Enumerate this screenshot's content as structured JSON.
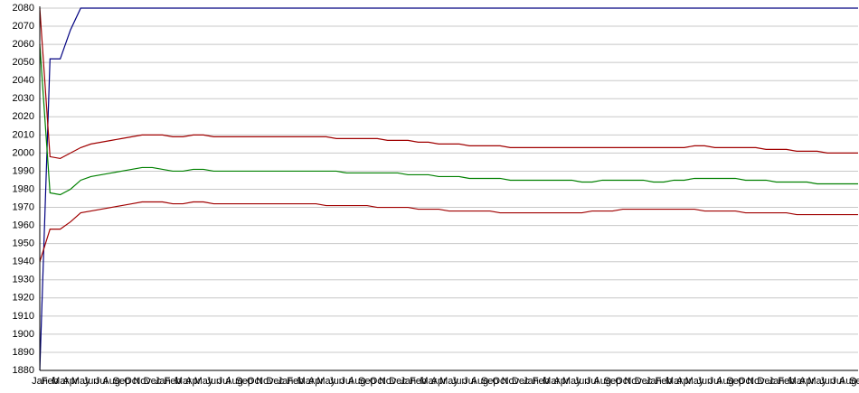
{
  "chart_data": {
    "type": "line",
    "categories": [
      "Jan",
      "Feb",
      "Mar",
      "Apr",
      "May",
      "Jun",
      "Jul",
      "Aug",
      "Sep",
      "Oct",
      "Nov",
      "Dec",
      "Jan",
      "Feb",
      "Mar",
      "Apr",
      "May",
      "Jun",
      "Jul",
      "Aug",
      "Sep",
      "Oct",
      "Nov",
      "Dec",
      "Jan",
      "Feb",
      "Mar",
      "Apr",
      "May",
      "Jun",
      "Jul",
      "Aug",
      "Sep",
      "Oct",
      "Nov",
      "Dec",
      "Jan",
      "Feb",
      "Mar",
      "Apr",
      "May",
      "Jun",
      "Jul",
      "Aug",
      "Sep",
      "Oct",
      "Nov",
      "Dec",
      "Jan",
      "Feb",
      "Mar",
      "Apr",
      "May",
      "Jun",
      "Jul",
      "Aug",
      "Sep",
      "Oct",
      "Nov",
      "Dec",
      "Jan",
      "Feb",
      "Mar",
      "Apr",
      "May",
      "Jun",
      "Jul",
      "Aug",
      "Sep",
      "Oct",
      "Nov",
      "Dec",
      "Jan",
      "Feb",
      "Mar",
      "Apr",
      "May",
      "Jun",
      "Jul",
      "Aug",
      "Sep"
    ],
    "series": [
      {
        "color": "#000080",
        "values": [
          1880,
          2052,
          2052,
          2068,
          2080,
          2080,
          2080,
          2080,
          2080,
          2080,
          2080,
          2080,
          2080,
          2080,
          2080,
          2080,
          2080,
          2080,
          2080,
          2080,
          2080,
          2080,
          2080,
          2080,
          2080,
          2080,
          2080,
          2080,
          2080,
          2080,
          2080,
          2080,
          2080,
          2080,
          2080,
          2080,
          2080,
          2080,
          2080,
          2080,
          2080,
          2080,
          2080,
          2080,
          2080,
          2080,
          2080,
          2080,
          2080,
          2080,
          2080,
          2080,
          2080,
          2080,
          2080,
          2080,
          2080,
          2080,
          2080,
          2080,
          2080,
          2080,
          2080,
          2080,
          2080,
          2080,
          2080,
          2080,
          2080,
          2080,
          2080,
          2080,
          2080,
          2080,
          2080,
          2080,
          2080,
          2080,
          2080,
          2080,
          2080
        ]
      },
      {
        "color": "#008000",
        "values": [
          2060,
          1978,
          1977,
          1980,
          1985,
          1987,
          1988,
          1989,
          1990,
          1991,
          1992,
          1992,
          1991,
          1990,
          1990,
          1991,
          1991,
          1990,
          1990,
          1990,
          1990,
          1990,
          1990,
          1990,
          1990,
          1990,
          1990,
          1990,
          1990,
          1990,
          1989,
          1989,
          1989,
          1989,
          1989,
          1989,
          1988,
          1988,
          1988,
          1987,
          1987,
          1987,
          1986,
          1986,
          1986,
          1986,
          1985,
          1985,
          1985,
          1985,
          1985,
          1985,
          1985,
          1984,
          1984,
          1985,
          1985,
          1985,
          1985,
          1985,
          1984,
          1984,
          1985,
          1985,
          1986,
          1986,
          1986,
          1986,
          1986,
          1985,
          1985,
          1985,
          1984,
          1984,
          1984,
          1984,
          1983,
          1983,
          1983,
          1983,
          1983
        ]
      },
      {
        "color": "#a00000",
        "values": [
          2080,
          1998,
          1997,
          2000,
          2003,
          2005,
          2006,
          2007,
          2008,
          2009,
          2010,
          2010,
          2010,
          2009,
          2009,
          2010,
          2010,
          2009,
          2009,
          2009,
          2009,
          2009,
          2009,
          2009,
          2009,
          2009,
          2009,
          2009,
          2009,
          2008,
          2008,
          2008,
          2008,
          2008,
          2007,
          2007,
          2007,
          2006,
          2006,
          2005,
          2005,
          2005,
          2004,
          2004,
          2004,
          2004,
          2003,
          2003,
          2003,
          2003,
          2003,
          2003,
          2003,
          2003,
          2003,
          2003,
          2003,
          2003,
          2003,
          2003,
          2003,
          2003,
          2003,
          2003,
          2004,
          2004,
          2003,
          2003,
          2003,
          2003,
          2003,
          2002,
          2002,
          2002,
          2001,
          2001,
          2001,
          2000,
          2000,
          2000,
          2000
        ]
      },
      {
        "color": "#a00000",
        "values": [
          1940,
          1958,
          1958,
          1962,
          1967,
          1968,
          1969,
          1970,
          1971,
          1972,
          1973,
          1973,
          1973,
          1972,
          1972,
          1973,
          1973,
          1972,
          1972,
          1972,
          1972,
          1972,
          1972,
          1972,
          1972,
          1972,
          1972,
          1972,
          1971,
          1971,
          1971,
          1971,
          1971,
          1970,
          1970,
          1970,
          1970,
          1969,
          1969,
          1969,
          1968,
          1968,
          1968,
          1968,
          1968,
          1967,
          1967,
          1967,
          1967,
          1967,
          1967,
          1967,
          1967,
          1967,
          1968,
          1968,
          1968,
          1969,
          1969,
          1969,
          1969,
          1969,
          1969,
          1969,
          1969,
          1968,
          1968,
          1968,
          1968,
          1967,
          1967,
          1967,
          1967,
          1967,
          1966,
          1966,
          1966,
          1966,
          1966,
          1966,
          1966
        ]
      }
    ],
    "ylim": [
      1880,
      2080
    ],
    "yticks": [
      1880,
      1890,
      1900,
      1910,
      1920,
      1930,
      1940,
      1950,
      1960,
      1970,
      1980,
      1990,
      2000,
      2010,
      2020,
      2030,
      2040,
      2050,
      2060,
      2070,
      2080
    ],
    "grid": true
  }
}
